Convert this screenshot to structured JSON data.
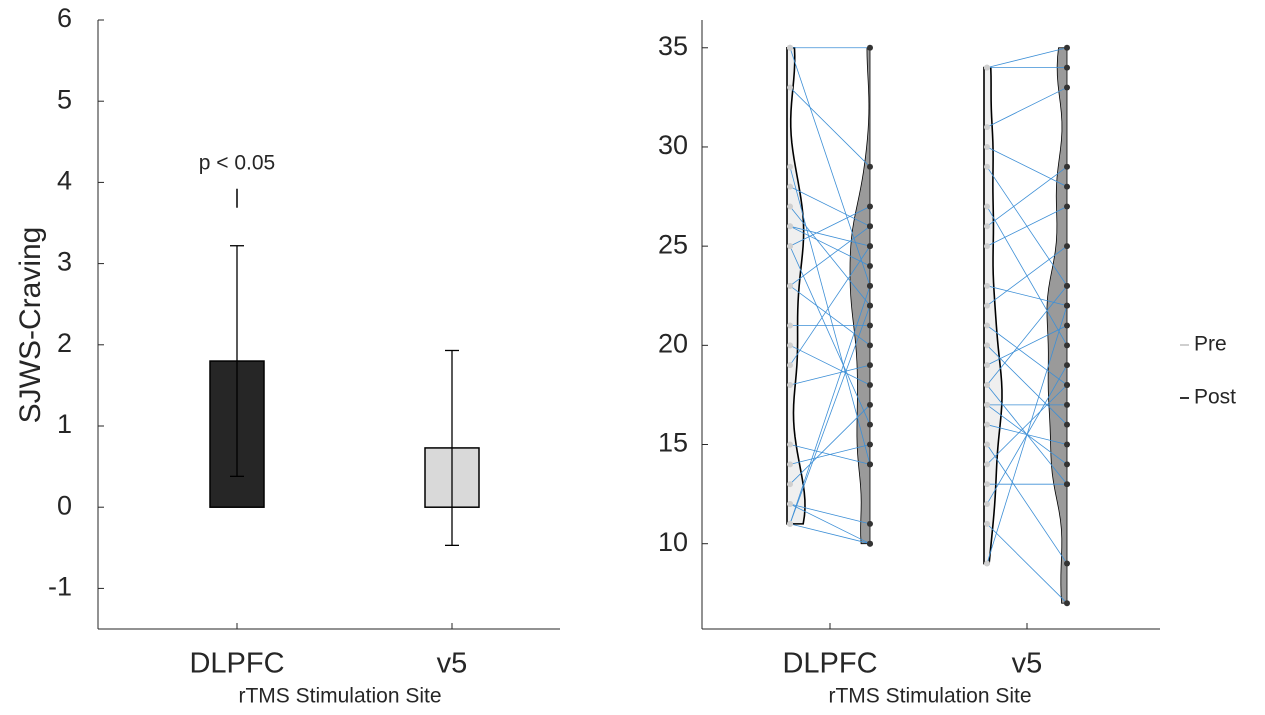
{
  "chart_data": [
    {
      "type": "bar",
      "ylabel": "SJWS-Craving",
      "xlabel": "rTMS Stimulation Site",
      "categories": [
        "DLPFC",
        "v5"
      ],
      "values": [
        1.8,
        0.73
      ],
      "errors": [
        1.42,
        1.2
      ],
      "colors": [
        "#262626",
        "#d9d9d9"
      ],
      "annotation": "p < 0.05",
      "ylim": [
        -1.5,
        6
      ],
      "yticks": [
        -1,
        0,
        1,
        2,
        3,
        4,
        5,
        6
      ]
    },
    {
      "type": "violin",
      "xlabel": "rTMS Stimulation Site",
      "categories": [
        "DLPFC",
        "v5"
      ],
      "series": [
        {
          "name": "Pre",
          "color": "#cfcfcf",
          "values": [
            [
              35,
              35,
              33,
              29,
              28,
              27,
              26,
              26,
              25,
              25,
              23,
              23,
              21,
              20,
              19,
              18,
              15,
              14,
              13,
              12,
              12,
              11,
              11,
              11
            ],
            [
              34,
              34,
              31,
              30,
              29,
              27,
              26,
              25,
              23,
              22,
              21,
              20,
              19,
              18,
              18,
              17,
              17,
              16,
              15,
              14,
              13,
              12,
              11,
              9
            ]
          ]
        },
        {
          "name": "Post",
          "color": "#333333",
          "values": [
            [
              35,
              23,
              29,
              14,
              26,
              22,
              25,
              24,
              27,
              16,
              20,
              26,
              21,
              18,
              25,
              19,
              14,
              15,
              17,
              11,
              10,
              22,
              10,
              23
            ],
            [
              35,
              34,
              33,
              28,
              23,
              20,
              29,
              27,
              22,
              25,
              18,
              16,
              21,
              23,
              13,
              14,
              17,
              15,
              9,
              18,
              13,
              19,
              7,
              22
            ]
          ]
        }
      ],
      "line_color": "#3d8fd6",
      "legend": "right",
      "ylim": [
        5.7,
        36.4
      ],
      "yticks": [
        10,
        15,
        20,
        25,
        30,
        35
      ]
    }
  ]
}
